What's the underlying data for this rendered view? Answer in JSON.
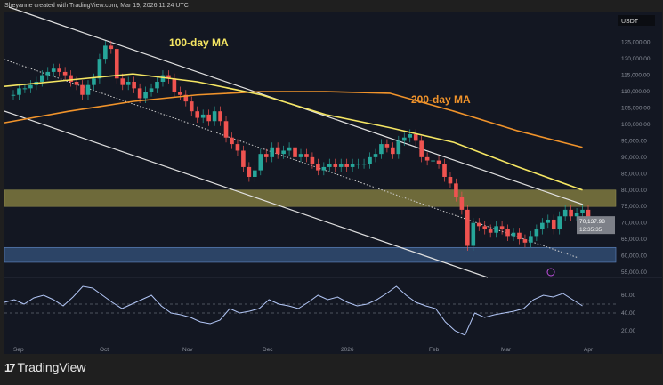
{
  "header": "Sheyanne created with TradingView.com, Mar 19, 2026 11:24 UTC",
  "brand": "TradingView",
  "chart_data": {
    "type": "candlestick",
    "currency": "USDT",
    "x_ticks": [
      "Sep",
      "Oct",
      "Nov",
      "Dec",
      "2026",
      "Feb",
      "Mar",
      "Apr"
    ],
    "y_ticks": [
      125000,
      120000,
      115000,
      110000,
      105000,
      100000,
      95000,
      90000,
      85000,
      80000,
      75000,
      70000,
      65000,
      60000,
      55000
    ],
    "ylim": [
      52000,
      130000
    ],
    "last_price": "70,137.98",
    "countdown": "12:35:35",
    "closes_2day_k": [
      109,
      111,
      111,
      112,
      113,
      115,
      116,
      117,
      116,
      115,
      113,
      112,
      109,
      112,
      114,
      120,
      124,
      123,
      114,
      112,
      113,
      111,
      108,
      110,
      111,
      113,
      115,
      114,
      110,
      109,
      107,
      104,
      102,
      103,
      101,
      104,
      101,
      96,
      94,
      92,
      87,
      84,
      86,
      91,
      90,
      93,
      91,
      92,
      93,
      90,
      91,
      90,
      88,
      86,
      87,
      88,
      87,
      88,
      87,
      88,
      88,
      88,
      90,
      91,
      94,
      93,
      91,
      95,
      96,
      97,
      95,
      90,
      89,
      89,
      88,
      84,
      82,
      78,
      74,
      63,
      70,
      69,
      68,
      67,
      69,
      68,
      66,
      67,
      65,
      64,
      66,
      68,
      70,
      71,
      68,
      72,
      74,
      72,
      73,
      74,
      70
    ],
    "ma100_label": "100-day MA",
    "ma100_k": [
      111.6,
      113.5,
      115.4,
      113,
      109,
      103,
      99,
      94.5,
      87,
      80
    ],
    "ma200_label": "200-day MA",
    "ma200_k": [
      100.5,
      104,
      107,
      109,
      110,
      110,
      109.5,
      104,
      98,
      93
    ],
    "resistance_zone": [
      75000,
      80000
    ],
    "support_zone": [
      58000,
      62500
    ],
    "rsi_ticks": [
      60,
      40,
      20
    ],
    "rsi": [
      52,
      55,
      50,
      57,
      60,
      55,
      48,
      58,
      70,
      68,
      60,
      52,
      45,
      50,
      55,
      60,
      48,
      40,
      38,
      35,
      30,
      28,
      32,
      45,
      40,
      42,
      45,
      55,
      50,
      48,
      45,
      52,
      60,
      55,
      58,
      52,
      48,
      50,
      55,
      62,
      70,
      60,
      52,
      48,
      45,
      30,
      20,
      15,
      40,
      35,
      38,
      40,
      42,
      45,
      55,
      60,
      58,
      62,
      55,
      48
    ],
    "colors": {
      "up": "#26a69a",
      "down": "#ef5350",
      "ma100": "#f5e663",
      "ma200": "#f0932b",
      "rsi": "#b3c7f7",
      "zone_res": "#6e6a3a",
      "zone_sup": "#2c4466",
      "bg": "#131722"
    }
  }
}
